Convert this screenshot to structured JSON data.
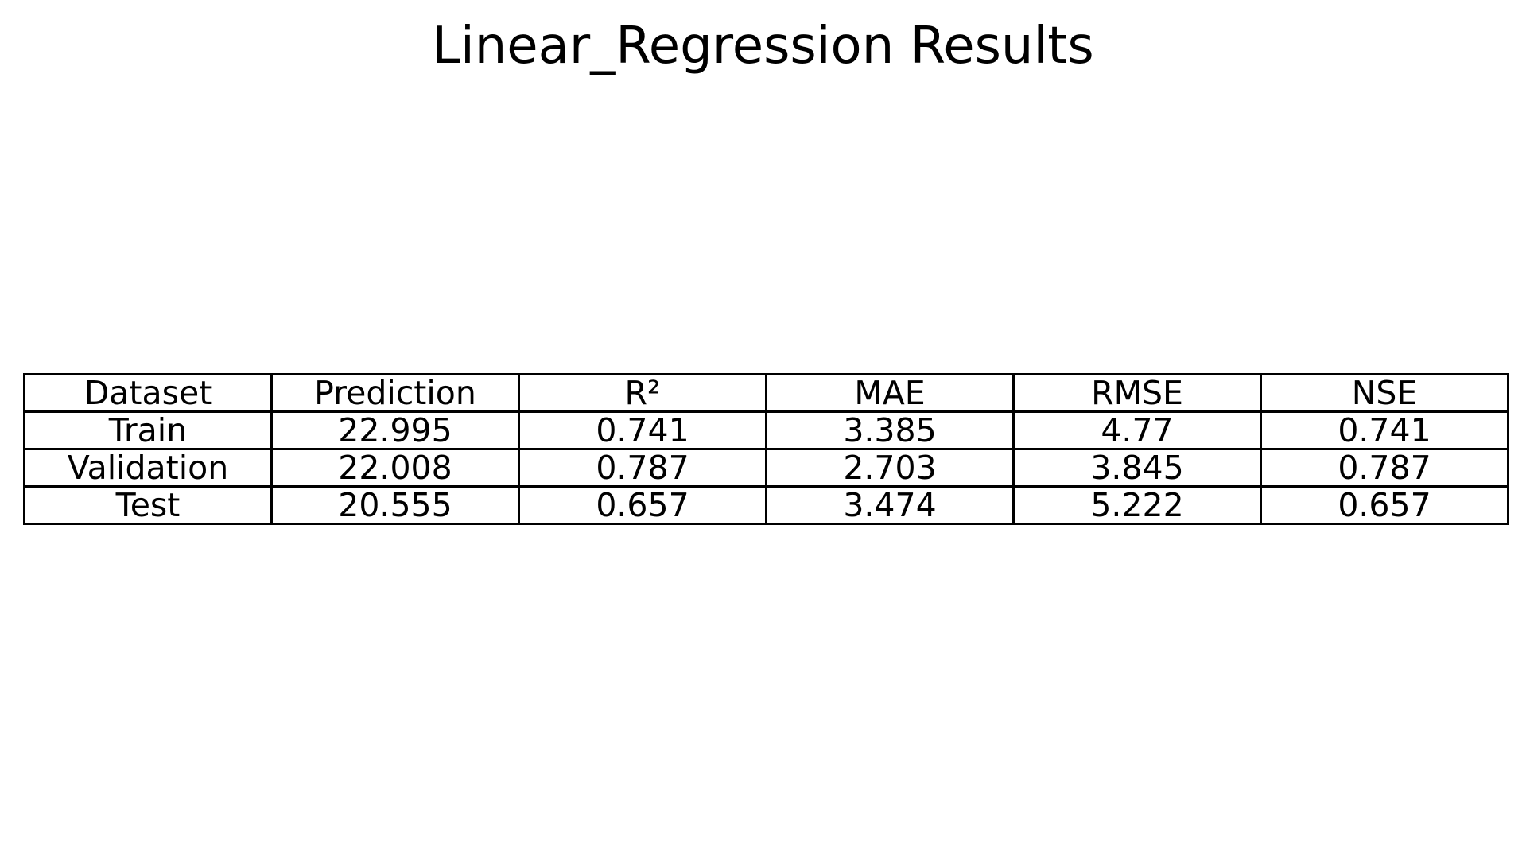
{
  "chart_data": {
    "type": "table",
    "title": "Linear_Regression Results",
    "columns": [
      "Dataset",
      "Prediction",
      "R²",
      "MAE",
      "RMSE",
      "NSE"
    ],
    "rows": [
      [
        "Train",
        "22.995",
        "0.741",
        "3.385",
        "4.77",
        "0.741"
      ],
      [
        "Validation",
        "22.008",
        "0.787",
        "2.703",
        "3.845",
        "0.787"
      ],
      [
        "Test",
        "20.555",
        "0.657",
        "3.474",
        "5.222",
        "0.657"
      ]
    ]
  }
}
